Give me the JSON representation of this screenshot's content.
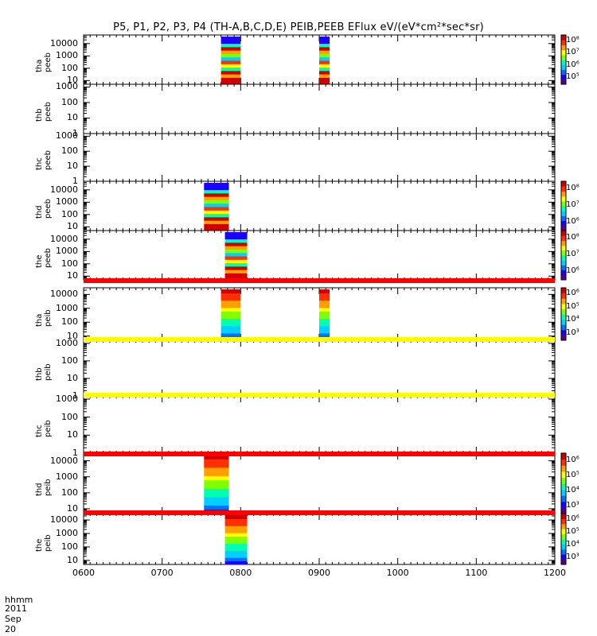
{
  "title": "P5, P1, P2, P3, P4 (TH-A,B,C,D,E) PEIB,PEEB EFlux eV/(eV*cm²*sec*sr)",
  "x_axis": {
    "ticks": [
      "0600",
      "0700",
      "0800",
      "0900",
      "1000",
      "1100",
      "1200"
    ],
    "unit_label": "hhmm",
    "date_label": "2011 Sep 20"
  },
  "colors": {
    "spectrum": [
      "#5a0080",
      "#1a00ff",
      "#0070ff",
      "#00d0ff",
      "#00ffb0",
      "#7fff00",
      "#ffff00",
      "#ffa000",
      "#ff3000",
      "#d00000"
    ],
    "flag_red": "#ff0000",
    "flag_yellow": "#ffff00"
  },
  "chart_data": [
    {
      "type": "heatmap",
      "probe": "tha",
      "product": "peeb",
      "ylabel": "tha\npeeb",
      "yticks": [
        "10",
        "100",
        "1000",
        "10000"
      ],
      "ylim": [
        5,
        50000
      ],
      "log_y": true,
      "colorbar": {
        "ticks": [
          "10⁵",
          "10⁶",
          "10⁷",
          "10⁸"
        ]
      },
      "blocks": [
        {
          "start": "0745",
          "end": "0800"
        },
        {
          "start": "0900",
          "end": "0908"
        }
      ]
    },
    {
      "type": "heatmap",
      "probe": "thb",
      "product": "peeb",
      "ylabel": "thb\npeeb",
      "yticks": [
        "1",
        "10",
        "100",
        "1000"
      ],
      "ylim": [
        1,
        1500
      ],
      "log_y": true,
      "blocks": []
    },
    {
      "type": "heatmap",
      "probe": "thc",
      "product": "peeb",
      "ylabel": "thc\npeeb",
      "yticks": [
        "1",
        "10",
        "100",
        "1000"
      ],
      "ylim": [
        1,
        1500
      ],
      "log_y": true,
      "blocks": []
    },
    {
      "type": "heatmap",
      "probe": "thd",
      "product": "peeb",
      "ylabel": "thd\npeeb",
      "yticks": [
        "10",
        "100",
        "1000",
        "10000"
      ],
      "ylim": [
        5,
        50000
      ],
      "log_y": true,
      "colorbar": {
        "ticks": [
          "10⁶",
          "10⁷",
          "10⁸"
        ]
      },
      "blocks": [
        {
          "start": "0732",
          "end": "0751"
        }
      ]
    },
    {
      "type": "heatmap",
      "probe": "the",
      "product": "peeb",
      "ylabel": "the\npeeb",
      "yticks": [
        "10",
        "100",
        "1000",
        "10000"
      ],
      "ylim": [
        5,
        50000
      ],
      "log_y": true,
      "colorbar": {
        "ticks": [
          "10⁶",
          "10⁷",
          "10⁸"
        ]
      },
      "blocks": [
        {
          "start": "0748",
          "end": "0805"
        }
      ]
    },
    {
      "type": "heatmap",
      "probe": "tha",
      "product": "peib",
      "ylabel": "tha\npeib",
      "yticks": [
        "10",
        "100",
        "1000",
        "10000"
      ],
      "ylim": [
        5,
        30000
      ],
      "log_y": true,
      "colorbar": {
        "ticks": [
          "10³",
          "10⁴",
          "10⁵",
          "10⁶"
        ]
      },
      "blocks": [
        {
          "start": "0745",
          "end": "0800"
        },
        {
          "start": "0900",
          "end": "0908"
        }
      ]
    },
    {
      "type": "heatmap",
      "probe": "thb",
      "product": "peib",
      "ylabel": "thb\npeib",
      "yticks": [
        "1",
        "10",
        "100",
        "1000"
      ],
      "ylim": [
        1,
        1500
      ],
      "log_y": true,
      "blocks": []
    },
    {
      "type": "heatmap",
      "probe": "thc",
      "product": "peib",
      "ylabel": "thc\npeib",
      "yticks": [
        "1",
        "10",
        "100",
        "1000"
      ],
      "ylim": [
        1,
        1500
      ],
      "log_y": true,
      "blocks": []
    },
    {
      "type": "heatmap",
      "probe": "thd",
      "product": "peib",
      "ylabel": "thd\npeib",
      "yticks": [
        "10",
        "100",
        "1000",
        "10000"
      ],
      "ylim": [
        5,
        30000
      ],
      "log_y": true,
      "colorbar": {
        "ticks": [
          "10³",
          "10⁴",
          "10⁵",
          "10⁶"
        ]
      },
      "blocks": [
        {
          "start": "0732",
          "end": "0751"
        }
      ]
    },
    {
      "type": "heatmap",
      "probe": "the",
      "product": "peib",
      "ylabel": "the\npeib",
      "yticks": [
        "10",
        "100",
        "1000",
        "10000"
      ],
      "ylim": [
        5,
        30000
      ],
      "log_y": true,
      "colorbar": {
        "ticks": [
          "10³",
          "10⁴",
          "10⁵",
          "10⁶"
        ]
      },
      "blocks": [
        {
          "start": "0748",
          "end": "0805"
        }
      ]
    }
  ]
}
